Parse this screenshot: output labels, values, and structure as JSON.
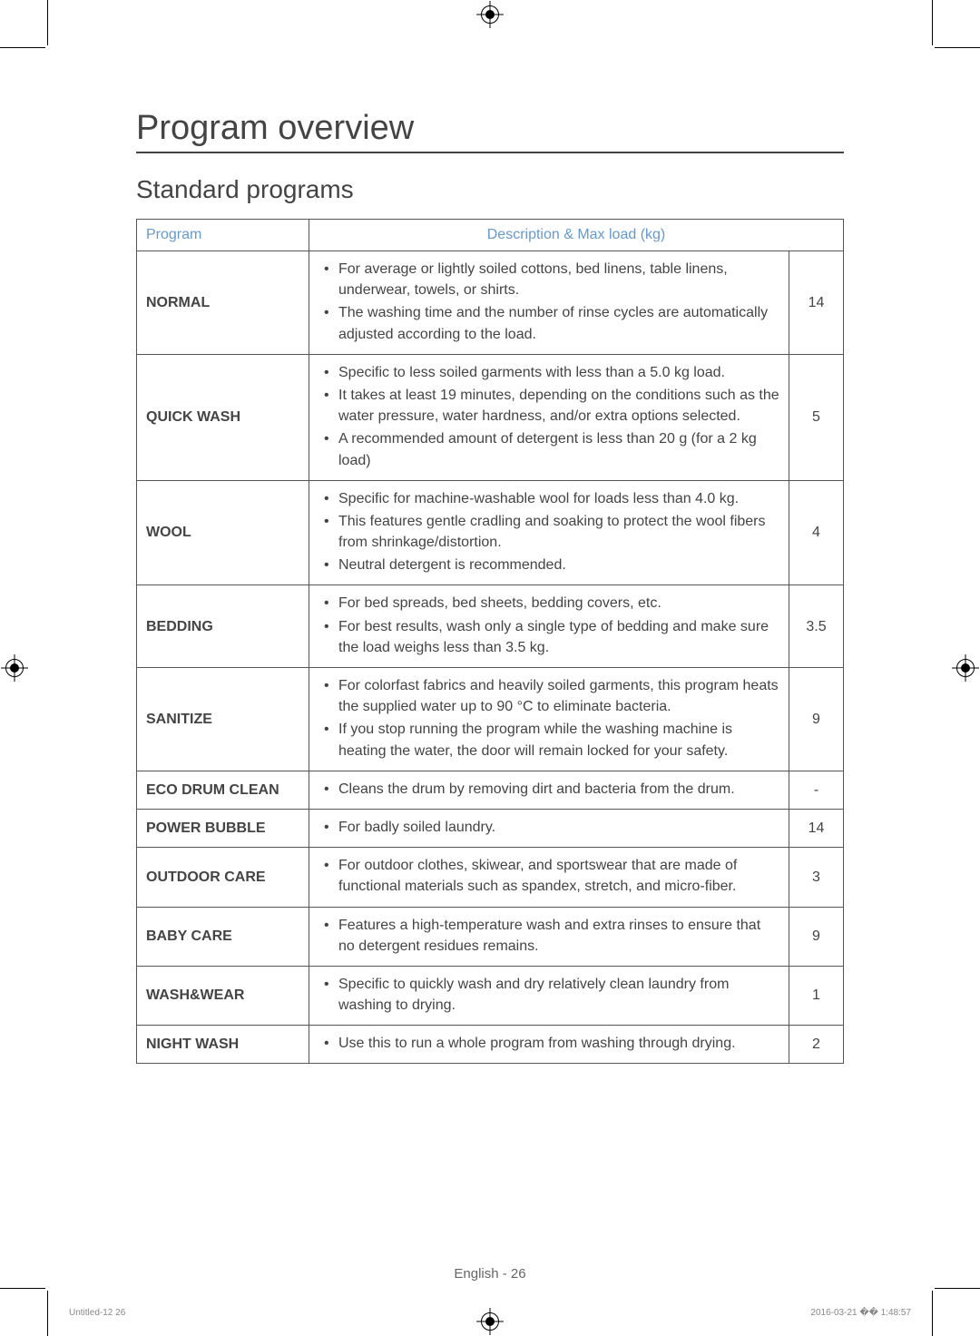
{
  "headings": {
    "main": "Program overview",
    "sub": "Standard programs"
  },
  "table": {
    "headers": {
      "program": "Program",
      "description": "Description & Max load (kg)"
    },
    "rows": [
      {
        "name": "NORMAL",
        "bullets": [
          "For average or lightly soiled cottons, bed linens, table linens, underwear, towels, or shirts.",
          "The washing time and the number of rinse cycles are automatically adjusted according to the load."
        ],
        "load": "14"
      },
      {
        "name": "QUICK WASH",
        "bullets": [
          "Specific to less soiled garments with less than a 5.0 kg load.",
          "It takes at least 19 minutes, depending on the conditions such as the water pressure, water hardness, and/or extra options selected.",
          "A recommended amount of detergent is less than 20 g (for a 2 kg load)"
        ],
        "load": "5"
      },
      {
        "name": "WOOL",
        "bullets": [
          "Specific for machine-washable wool for loads less than 4.0 kg.",
          "This features gentle cradling and soaking to protect the wool fibers from shrinkage/distortion.",
          "Neutral detergent is recommended."
        ],
        "load": "4"
      },
      {
        "name": "BEDDING",
        "bullets": [
          "For bed spreads, bed sheets, bedding covers, etc.",
          "For best results, wash only a single type of bedding and make sure the load weighs less than 3.5 kg."
        ],
        "load": "3.5"
      },
      {
        "name": "SANITIZE",
        "bullets": [
          "For colorfast fabrics and heavily soiled garments, this program heats the supplied water up to 90 °C to eliminate bacteria.",
          "If you stop running the program while the washing machine is heating the water, the door will remain locked for your safety."
        ],
        "load": "9"
      },
      {
        "name": "ECO DRUM CLEAN",
        "bullets": [
          "Cleans the drum by removing dirt and bacteria from the drum."
        ],
        "load": "-"
      },
      {
        "name": "POWER BUBBLE",
        "bullets": [
          "For badly soiled laundry."
        ],
        "load": "14"
      },
      {
        "name": "OUTDOOR CARE",
        "bullets": [
          "For outdoor clothes, skiwear, and sportswear that are made of functional materials such as spandex, stretch, and micro-fiber."
        ],
        "load": "3"
      },
      {
        "name": "BABY CARE",
        "bullets": [
          "Features a high-temperature wash and extra rinses to ensure that no detergent residues remains."
        ],
        "load": "9"
      },
      {
        "name": "WASH&WEAR",
        "bullets": [
          "Specific to quickly wash and dry relatively clean laundry from washing to drying."
        ],
        "load": "1"
      },
      {
        "name": "NIGHT WASH",
        "bullets": [
          "Use this to run a whole program from washing through drying."
        ],
        "load": "2"
      }
    ]
  },
  "footer": {
    "page_label": "English - 26",
    "left": "Untitled-12   26",
    "right": "2016-03-21   �� 1:48:57"
  },
  "colors": {
    "heading": "#444444",
    "header_text": "#6699cc",
    "border": "#555555",
    "body_text": "#444444",
    "footer_text": "#666666",
    "background": "#ffffff"
  },
  "typography": {
    "main_heading_size_pt": 29,
    "sub_heading_size_pt": 21,
    "body_size_pt": 12,
    "footer_size_pt": 11
  }
}
